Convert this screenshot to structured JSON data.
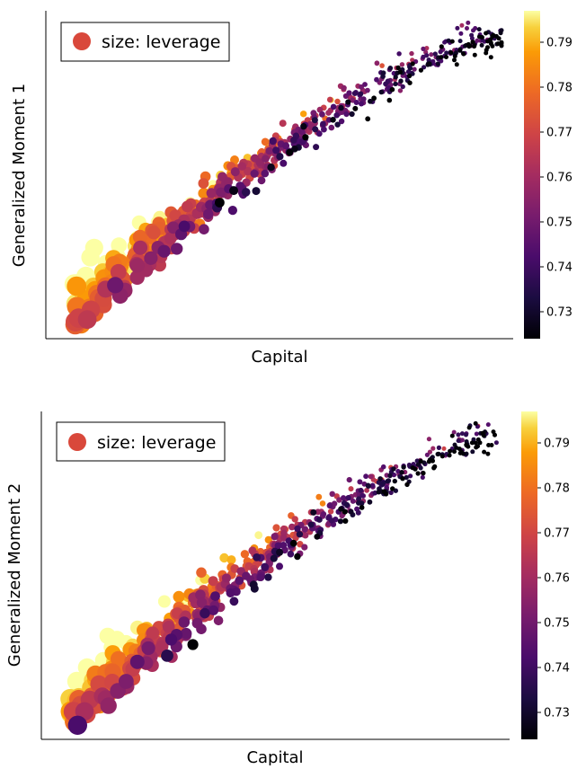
{
  "chart_data": [
    {
      "type": "scatter",
      "xlabel": "Capital",
      "ylabel": "Generalized Moment 1",
      "legend": {
        "label": "size: leverage",
        "placement": "top-left",
        "color": "#d9483b"
      },
      "colorbar": {
        "ticks": [
          "0.73",
          "0.74",
          "0.75",
          "0.76",
          "0.77",
          "0.78",
          "0.79"
        ],
        "tick_values": [
          0.73,
          0.74,
          0.75,
          0.76,
          0.77,
          0.78,
          0.79
        ],
        "min": 0.724,
        "max": 0.797,
        "colormap": "inferno"
      },
      "xlim": [
        0,
        1
      ],
      "ylim": [
        0,
        1
      ],
      "x_ticks_shown": false,
      "y_ticks_shown": false,
      "grid": false,
      "seed": 11
    },
    {
      "type": "scatter",
      "xlabel": "Capital",
      "ylabel": "Generalized Moment 2",
      "legend": {
        "label": "size: leverage",
        "placement": "top-left",
        "color": "#d9483b"
      },
      "colorbar": {
        "ticks": [
          "0.73",
          "0.74",
          "0.75",
          "0.76",
          "0.77",
          "0.78",
          "0.79"
        ],
        "tick_values": [
          0.73,
          0.74,
          0.75,
          0.76,
          0.77,
          0.78,
          0.79
        ],
        "min": 0.724,
        "max": 0.797,
        "colormap": "inferno"
      },
      "xlim": [
        0,
        1
      ],
      "ylim": [
        0,
        1
      ],
      "x_ticks_shown": false,
      "y_ticks_shown": false,
      "grid": false,
      "seed": 29
    }
  ]
}
